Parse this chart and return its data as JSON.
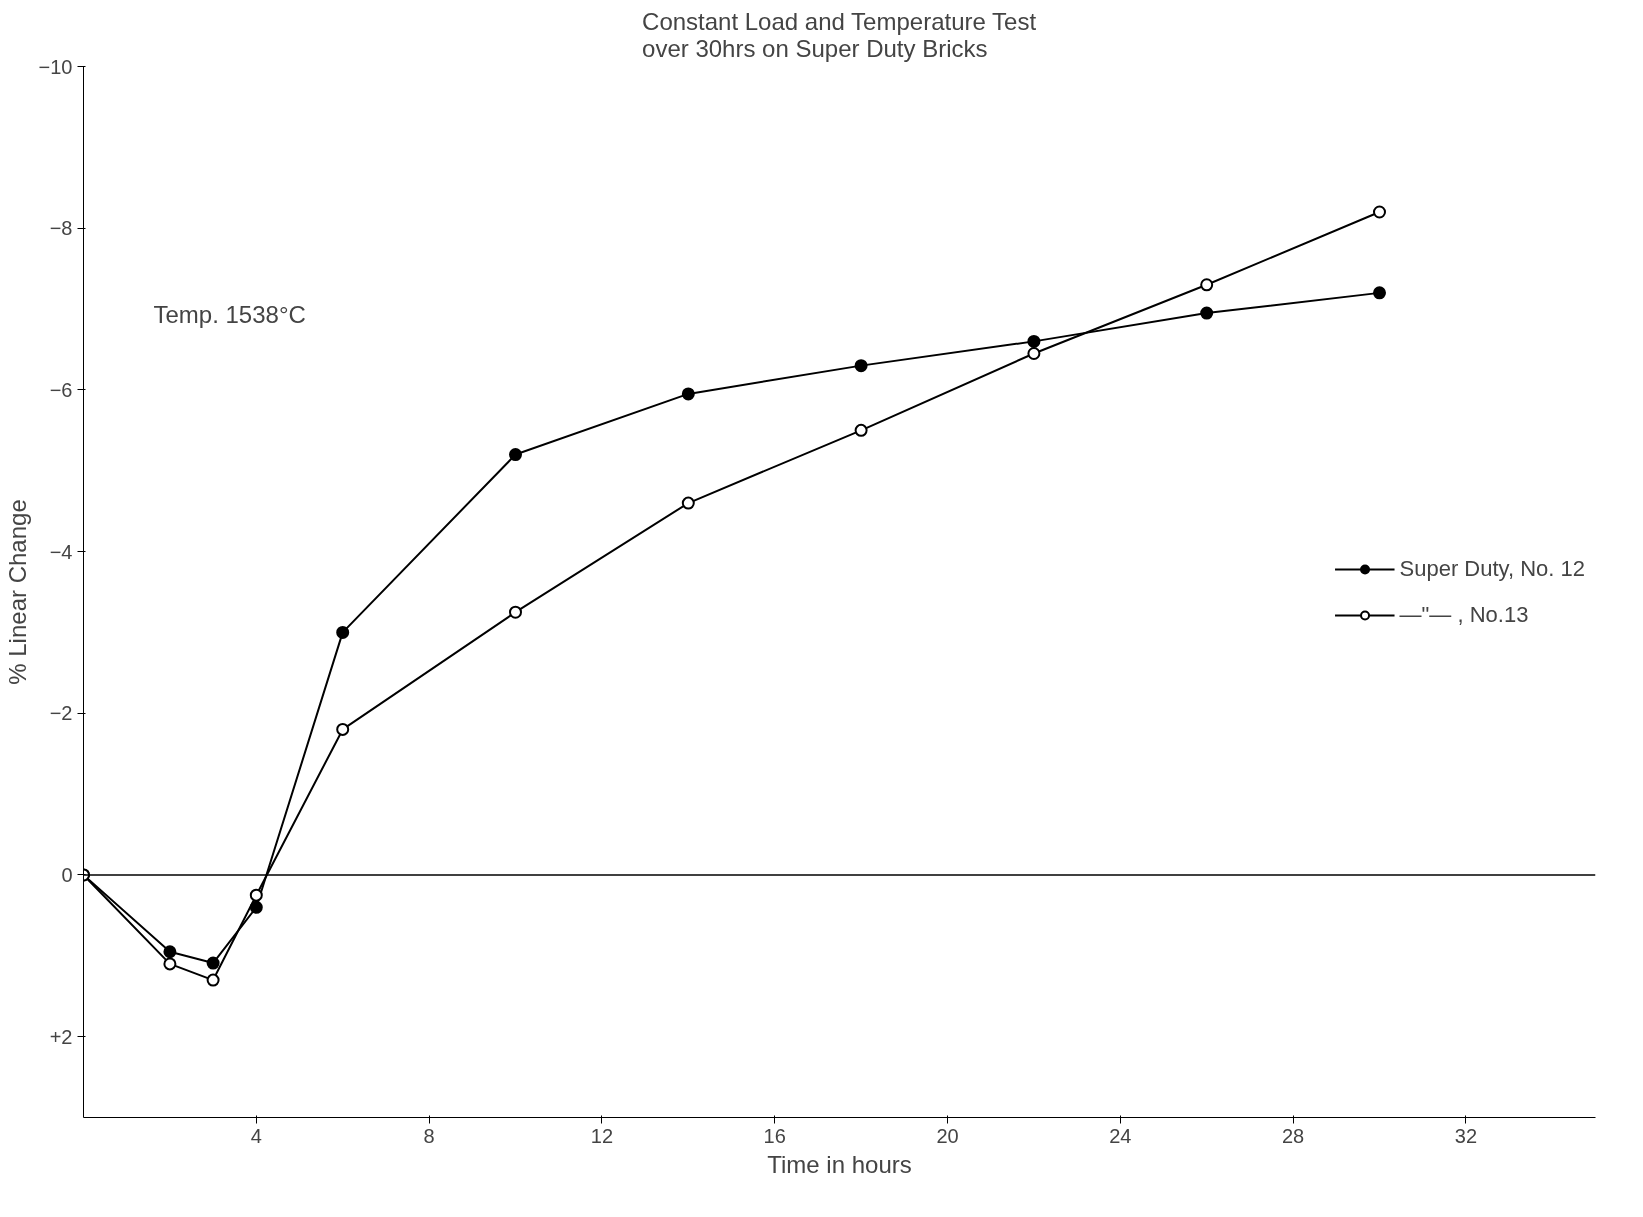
{
  "chart_data": {
    "type": "line",
    "title": "Constant Load and Temperature Test\nover 30hrs on Super Duty Bricks",
    "xlabel": "Time in hours",
    "ylabel": "% Linear Change",
    "annotations": [
      "Temp. 1538°C"
    ],
    "xlim": [
      0,
      35
    ],
    "xticks": [
      4,
      8,
      12,
      16,
      20,
      24,
      28,
      32
    ],
    "ylim": [
      3,
      -10
    ],
    "yticks": [
      -10,
      -8,
      -6,
      -4,
      -2,
      0,
      {
        "value": 2,
        "label": "+2"
      }
    ],
    "ref_lines": [
      {
        "axis": "y",
        "value": 0,
        "color": "#000000"
      }
    ],
    "grid": false,
    "legend": "right",
    "marker": "circle",
    "line_style": "solid",
    "series": [
      {
        "name": "Super Duty, No. 12",
        "color": "#000000",
        "x": [
          0,
          2,
          3,
          4,
          6,
          10,
          14,
          18,
          22,
          26,
          30
        ],
        "values": [
          0,
          0.95,
          1.09,
          0.4,
          -3.0,
          -5.2,
          -5.95,
          -6.3,
          -6.6,
          -6.95,
          -7.2
        ]
      },
      {
        "name": "—\"— , No.13",
        "color": "#000000",
        "x": [
          0,
          2,
          3,
          4,
          6,
          10,
          14,
          18,
          22,
          26,
          30
        ],
        "values": [
          0,
          1.1,
          1.3,
          0.25,
          -1.8,
          -3.25,
          -4.6,
          -5.5,
          -6.45,
          -7.3,
          -8.2
        ]
      }
    ]
  }
}
